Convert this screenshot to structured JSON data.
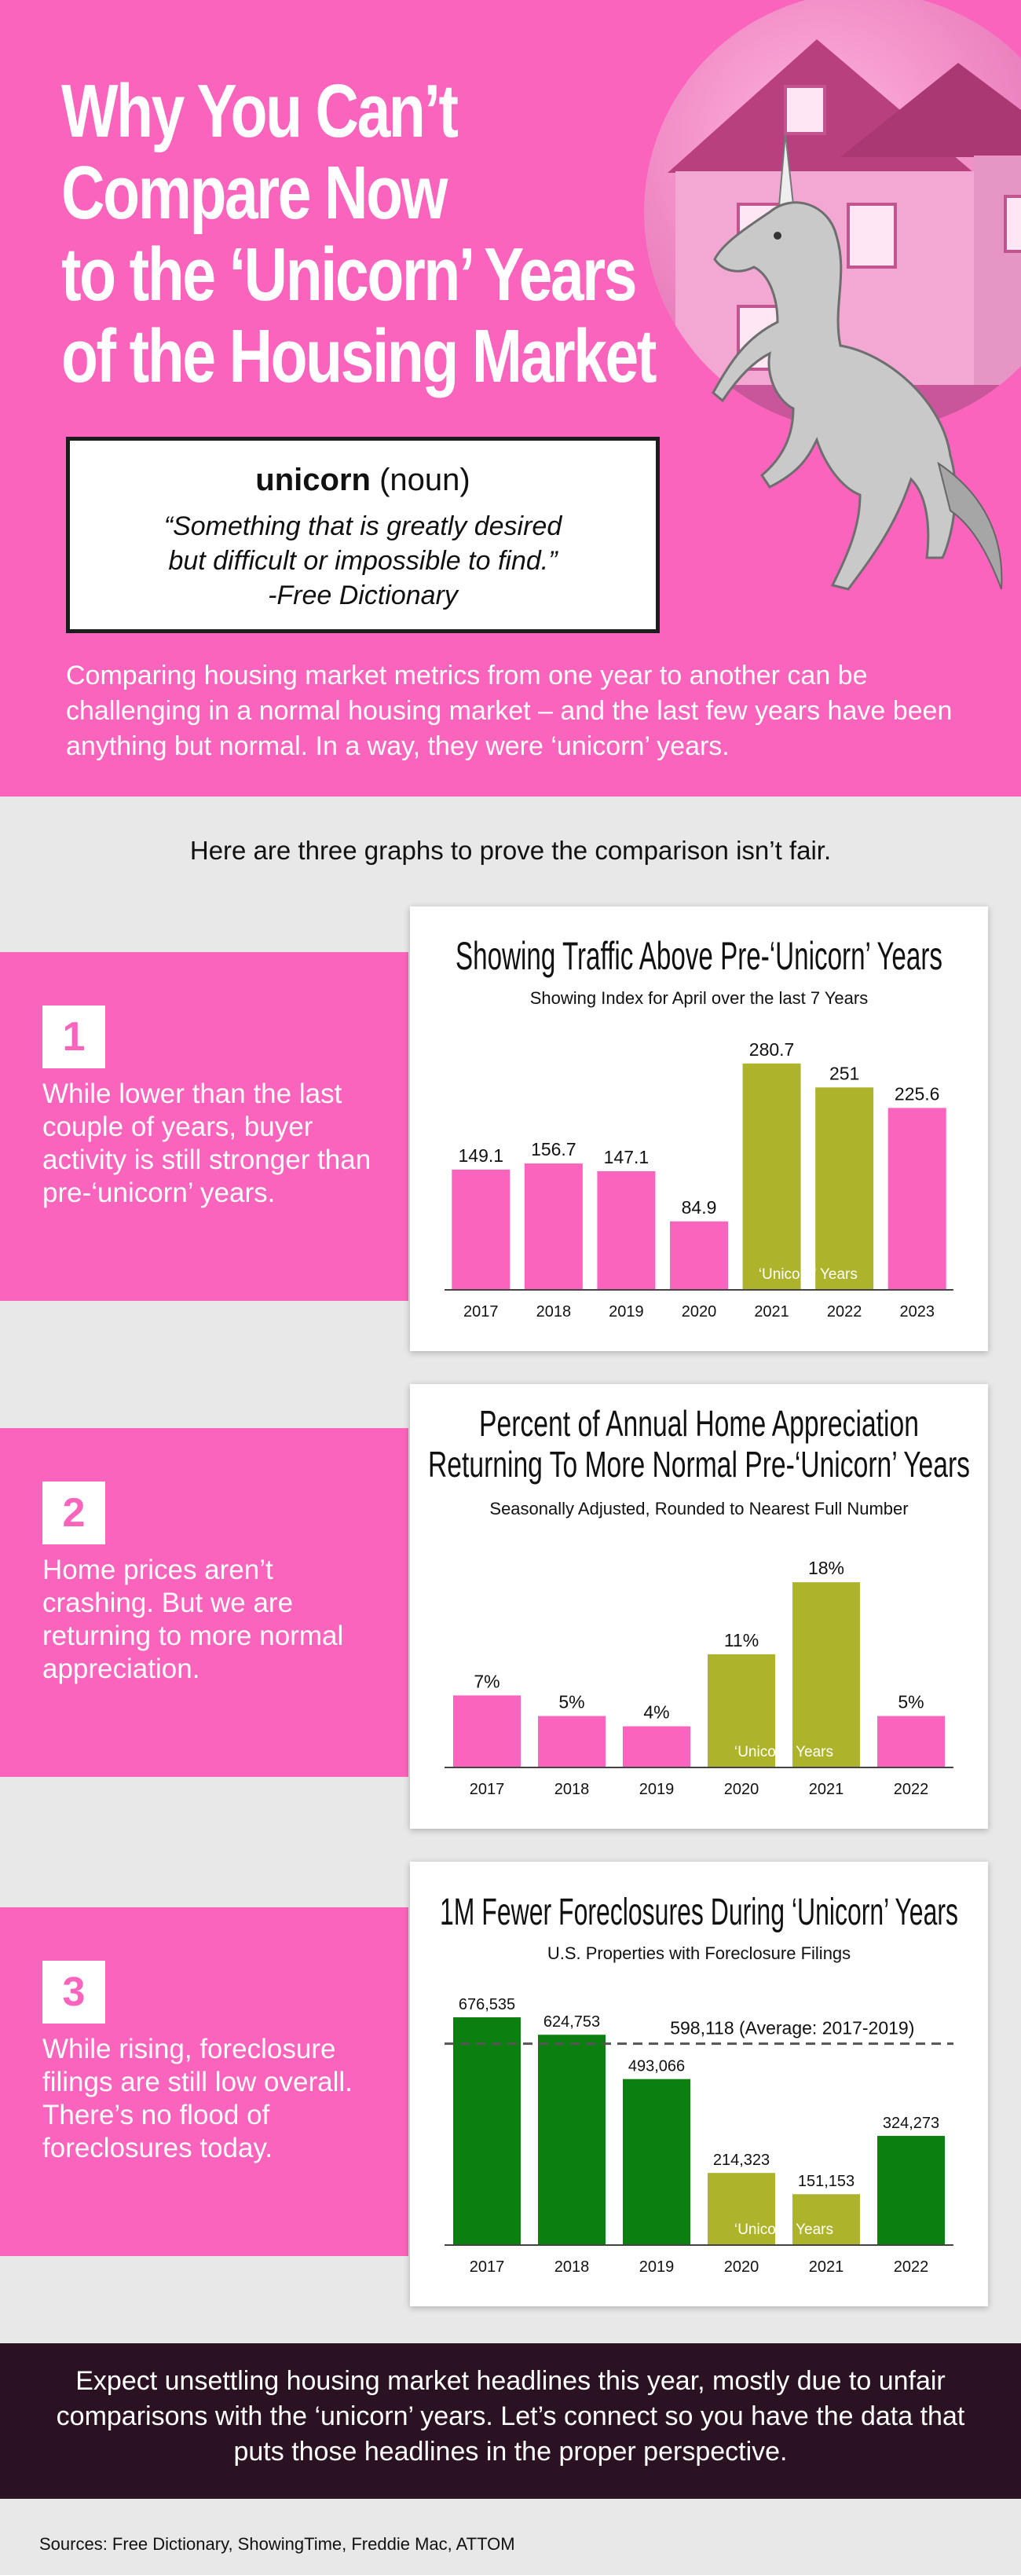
{
  "hero": {
    "title_lines": [
      "Why You Can’t",
      "Compare Now",
      "to the ‘Unicorn’ Years",
      "of the Housing Market"
    ],
    "dictionary": {
      "word": "unicorn",
      "part_of_speech": "(noun)",
      "definition_line1": "“Something that is greatly desired",
      "definition_line2": "but difficult or impossible to find.”",
      "attribution": "-Free Dictionary"
    },
    "intro": "Comparing housing market metrics from one year to another can be challenging in a normal housing market – and the last few years have been anything but normal. In a way, they were ‘unicorn’ years."
  },
  "subhead": "Here are three graphs to prove the comparison isn’t fair.",
  "panels": [
    {
      "number": "1",
      "text": "While lower than the last couple of years, buyer activity is still stronger than pre-‘unicorn’ years."
    },
    {
      "number": "2",
      "text": "Home prices aren’t crashing. But we are returning to more normal appreciation."
    },
    {
      "number": "3",
      "text": "While rising, foreclosure filings are still low overall. There’s no flood of foreclosures today."
    }
  ],
  "colors": {
    "pink": "#fb64bd",
    "olive": "#aeb32c",
    "green": "#0b7f10",
    "dark": "#2a1223"
  },
  "chart_data": [
    {
      "type": "bar",
      "title": "Showing Traffic Above Pre-‘Unicorn’ Years",
      "subtitle": "Showing Index for April over the last 7 Years",
      "categories": [
        "2017",
        "2018",
        "2019",
        "2020",
        "2021",
        "2022",
        "2023"
      ],
      "values": [
        149.1,
        156.7,
        147.1,
        84.9,
        280.7,
        251,
        225.6
      ],
      "value_labels": [
        "149.1",
        "156.7",
        "147.1",
        "84.9",
        "280.7",
        "251",
        "225.6"
      ],
      "highlight": [
        false,
        false,
        false,
        false,
        true,
        true,
        false
      ],
      "annotation": "‘Unicorn’ Years",
      "ylim": [
        0,
        300
      ]
    },
    {
      "type": "bar",
      "title_lines": [
        "Percent of Annual Home Appreciation",
        "Returning To More Normal Pre-‘Unicorn’ Years"
      ],
      "subtitle": "Seasonally Adjusted, Rounded to Nearest Full Number",
      "categories": [
        "2017",
        "2018",
        "2019",
        "2020",
        "2021",
        "2022"
      ],
      "values": [
        7,
        5,
        4,
        11,
        18,
        5
      ],
      "value_labels": [
        "7%",
        "5%",
        "4%",
        "11%",
        "18%",
        "5%"
      ],
      "highlight": [
        false,
        false,
        false,
        true,
        true,
        false
      ],
      "annotation": "‘Unicorn’ Years",
      "ylim": [
        0,
        20
      ]
    },
    {
      "type": "bar",
      "title": "1M Fewer Foreclosures During ‘Unicorn’ Years",
      "subtitle": "U.S. Properties with Foreclosure Filings",
      "categories": [
        "2017",
        "2018",
        "2019",
        "2020",
        "2021",
        "2022"
      ],
      "values": [
        676535,
        624753,
        493066,
        214323,
        151153,
        324273
      ],
      "value_labels": [
        "676,535",
        "624,753",
        "493,066",
        "214,323",
        "151,153",
        "324,273"
      ],
      "highlight": [
        false,
        false,
        false,
        true,
        true,
        false
      ],
      "annotation": "‘Unicorn’ Years",
      "reference_line": {
        "value": 598118,
        "label": "598,118 (Average: 2017-2019)"
      },
      "ylim": [
        0,
        700000
      ]
    }
  ],
  "closing": "Expect unsettling housing market headlines this year, mostly due to unfair comparisons with the ‘unicorn’ years. Let’s connect so you have the data that puts those headlines in the proper perspective.",
  "sources": "Sources: Free Dictionary, ShowingTime, Freddie Mac, ATTOM"
}
